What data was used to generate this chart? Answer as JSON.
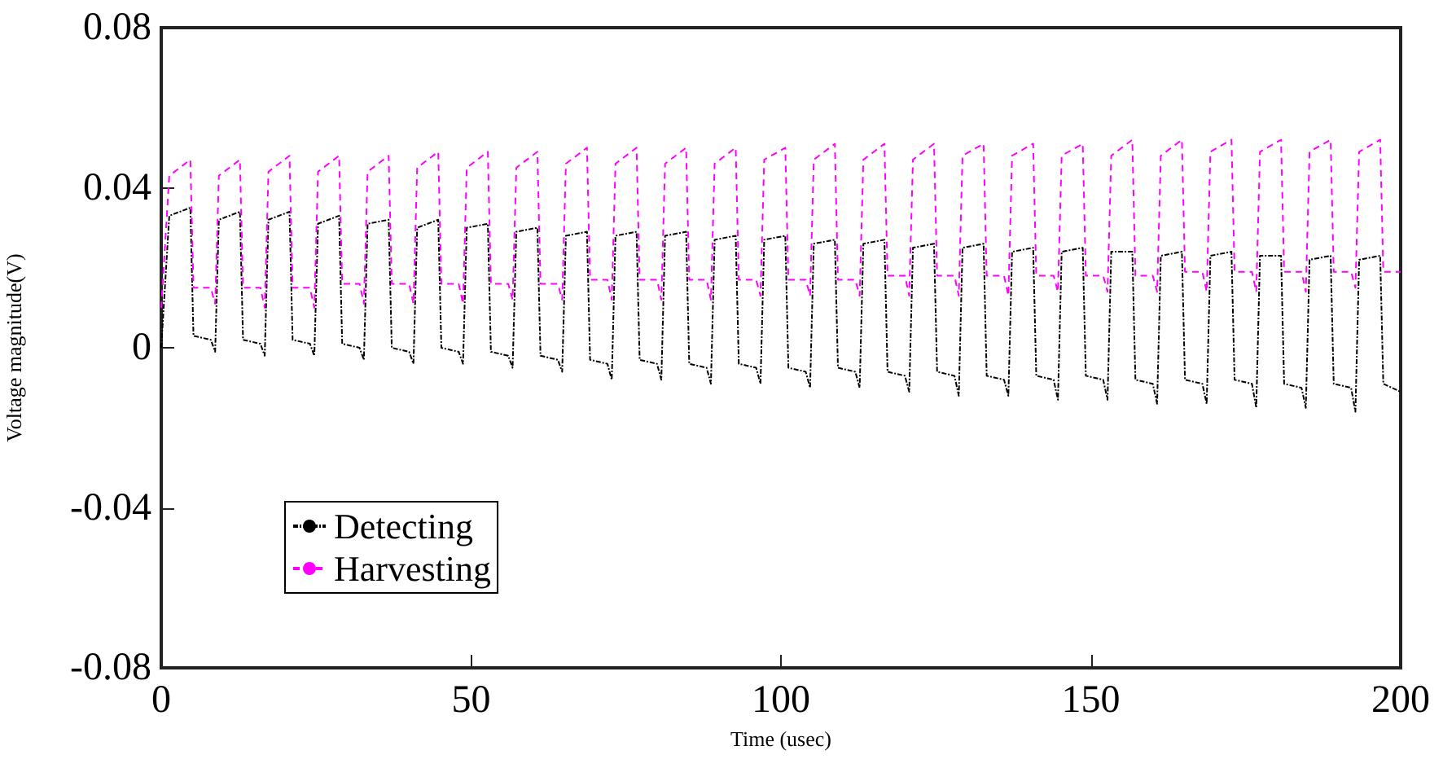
{
  "chart_data": {
    "type": "line",
    "xlabel": "Time (usec)",
    "ylabel": "Voltage magnitude(V)",
    "x": [
      0,
      1.3,
      4.7,
      5.2,
      8,
      8.7,
      9.3,
      12.7,
      13.2,
      16,
      16.7,
      17.3,
      20.7,
      21.2,
      24,
      24.7,
      25.3,
      28.7,
      29.2,
      32,
      32.7,
      33.3,
      36.7,
      37.2,
      40,
      40.7,
      41.3,
      44.7,
      45.2,
      48,
      48.7,
      49.3,
      52.7,
      53.2,
      56,
      56.7,
      57.3,
      60.7,
      61.2,
      64,
      64.7,
      65.3,
      68.7,
      69.2,
      72,
      72.7,
      73.3,
      76.7,
      77.2,
      80,
      80.7,
      81.3,
      84.7,
      85.2,
      88,
      88.7,
      89.3,
      92.7,
      93.2,
      96,
      96.7,
      97.3,
      100.7,
      101.2,
      104,
      104.7,
      105.3,
      108.7,
      109.2,
      112,
      112.7,
      113.3,
      116.7,
      117.2,
      120,
      120.7,
      121.3,
      124.7,
      125.2,
      128,
      128.7,
      129.3,
      132.7,
      133.2,
      136,
      136.7,
      137.3,
      140.7,
      141.2,
      144,
      144.7,
      145.3,
      148.7,
      149.2,
      152,
      152.7,
      153.3,
      156.7,
      157.2,
      160,
      160.7,
      161.3,
      164.7,
      165.2,
      168,
      168.7,
      169.3,
      172.7,
      173.2,
      176,
      176.7,
      177.3,
      180.7,
      181.2,
      184,
      184.7,
      185.3,
      188.7,
      189.2,
      192,
      192.7,
      193.3,
      196.7,
      197.2,
      200
    ],
    "series": [
      {
        "name": "Detecting",
        "color": "#000000",
        "line_style": "dotted",
        "values": [
          0,
          0.033,
          0.035,
          0.003,
          0.002,
          -0.001,
          0.032,
          0.034,
          0.002,
          0.001,
          -0.002,
          0.032,
          0.034,
          0.002,
          0.001,
          -0.002,
          0.031,
          0.033,
          0.001,
          0.0,
          -0.003,
          0.031,
          0.032,
          0.0,
          -0.001,
          -0.004,
          0.03,
          0.032,
          0.0,
          -0.001,
          -0.004,
          0.03,
          0.031,
          -0.001,
          -0.002,
          -0.005,
          0.029,
          0.03,
          -0.002,
          -0.003,
          -0.006,
          0.028,
          0.029,
          -0.003,
          -0.004,
          -0.008,
          0.028,
          0.029,
          -0.003,
          -0.004,
          -0.008,
          0.028,
          0.029,
          -0.004,
          -0.005,
          -0.009,
          0.027,
          0.028,
          -0.004,
          -0.005,
          -0.009,
          0.027,
          0.028,
          -0.005,
          -0.006,
          -0.01,
          0.026,
          0.027,
          -0.005,
          -0.006,
          -0.01,
          0.026,
          0.027,
          -0.006,
          -0.007,
          -0.011,
          0.025,
          0.026,
          -0.006,
          -0.007,
          -0.012,
          0.025,
          0.026,
          -0.007,
          -0.008,
          -0.012,
          0.024,
          0.025,
          -0.007,
          -0.008,
          -0.013,
          0.024,
          0.025,
          -0.007,
          -0.008,
          -0.013,
          0.024,
          0.024,
          -0.008,
          -0.009,
          -0.014,
          0.023,
          0.024,
          -0.008,
          -0.009,
          -0.014,
          0.023,
          0.024,
          -0.008,
          -0.009,
          -0.015,
          0.023,
          0.023,
          -0.009,
          -0.01,
          -0.015,
          0.022,
          0.023,
          -0.009,
          -0.01,
          -0.016,
          0.022,
          0.023,
          -0.009,
          -0.011
        ]
      },
      {
        "name": "Harvesting",
        "color": "#ff00ff",
        "line_style": "dashed",
        "values": [
          0.01,
          0.043,
          0.047,
          0.015,
          0.015,
          0.011,
          0.043,
          0.047,
          0.015,
          0.015,
          0.01,
          0.044,
          0.048,
          0.015,
          0.015,
          0.01,
          0.044,
          0.048,
          0.016,
          0.016,
          0.011,
          0.044,
          0.048,
          0.016,
          0.016,
          0.011,
          0.045,
          0.049,
          0.016,
          0.016,
          0.011,
          0.045,
          0.049,
          0.016,
          0.016,
          0.012,
          0.045,
          0.049,
          0.016,
          0.016,
          0.012,
          0.046,
          0.05,
          0.017,
          0.017,
          0.012,
          0.046,
          0.05,
          0.017,
          0.017,
          0.012,
          0.046,
          0.05,
          0.017,
          0.017,
          0.012,
          0.046,
          0.05,
          0.017,
          0.017,
          0.013,
          0.047,
          0.05,
          0.017,
          0.017,
          0.013,
          0.047,
          0.051,
          0.017,
          0.017,
          0.013,
          0.047,
          0.051,
          0.018,
          0.018,
          0.013,
          0.047,
          0.051,
          0.018,
          0.018,
          0.013,
          0.048,
          0.051,
          0.018,
          0.018,
          0.013,
          0.048,
          0.051,
          0.018,
          0.018,
          0.014,
          0.048,
          0.051,
          0.018,
          0.018,
          0.014,
          0.048,
          0.052,
          0.018,
          0.018,
          0.014,
          0.048,
          0.052,
          0.019,
          0.019,
          0.014,
          0.049,
          0.052,
          0.019,
          0.019,
          0.014,
          0.049,
          0.052,
          0.019,
          0.019,
          0.014,
          0.049,
          0.052,
          0.019,
          0.019,
          0.015,
          0.049,
          0.052,
          0.019,
          0.019
        ]
      }
    ],
    "xlim": [
      0,
      200
    ],
    "xticks": [
      0,
      50,
      100,
      150,
      200
    ],
    "ylim": [
      -0.08,
      0.08
    ],
    "yticks": [
      -0.08,
      -0.04,
      0,
      0.04,
      0.08
    ],
    "grid": false,
    "legend": "bottom left",
    "marker": "none"
  }
}
